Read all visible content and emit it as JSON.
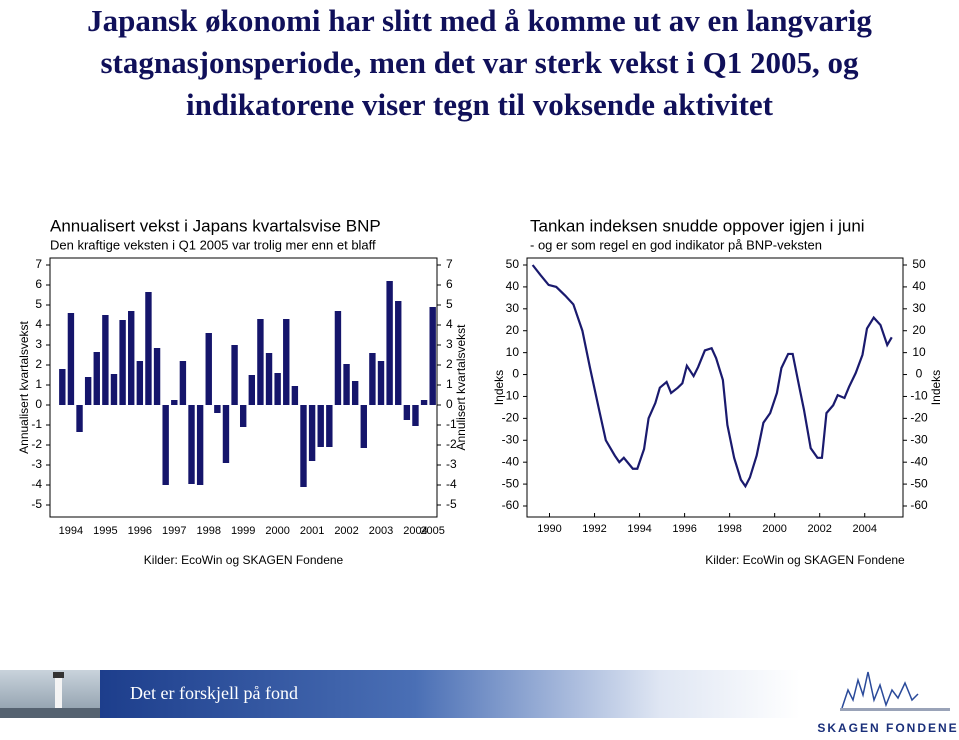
{
  "title": [
    "Japansk økonomi har slitt med å komme ut av en langvarig",
    "stagnasjonsperiode, men det var sterk vekst i Q1 2005, og",
    "indikatorene viser tegn til voksende aktivitet"
  ],
  "chart_data": [
    {
      "type": "bar",
      "title": "Annualisert vekst i Japans kvartalsvise BNP",
      "subtitle": "Den kraftige veksten i Q1 2005 var trolig mer enn et blaff",
      "ylabel": "Annualisert kvartalsvekst",
      "y2label": "Annulisert kvartalsvekst",
      "source": "Kilder: EcoWin og SKAGEN Fondene",
      "categories": [
        null,
        "1994",
        null,
        null,
        null,
        "1995",
        null,
        null,
        null,
        "1996",
        null,
        null,
        null,
        "1997",
        null,
        null,
        null,
        "1998",
        null,
        null,
        null,
        "1999",
        null,
        null,
        null,
        "2000",
        null,
        null,
        null,
        "2001",
        null,
        null,
        null,
        "2002",
        null,
        null,
        null,
        "2003",
        null,
        null,
        null,
        "2004",
        null,
        "2005"
      ],
      "values": [
        1.8,
        4.6,
        -1.35,
        1.4,
        2.65,
        4.5,
        1.55,
        4.25,
        4.7,
        2.2,
        5.65,
        2.85,
        -4.0,
        0.25,
        2.2,
        -3.95,
        -4.0,
        3.6,
        -0.4,
        -2.9,
        3.0,
        -1.1,
        1.5,
        4.3,
        2.6,
        1.6,
        4.3,
        0.95,
        -4.1,
        -2.8,
        -2.1,
        -2.1,
        4.7,
        2.05,
        1.2,
        -2.15,
        2.6,
        2.2,
        6.2,
        5.2,
        -0.75,
        -1.05,
        0.25,
        4.9
      ],
      "color": "#15156b",
      "ylim": [
        -5,
        7
      ],
      "yticks": [
        -5,
        -4,
        -3,
        -2,
        -1,
        0,
        1,
        2,
        3,
        4,
        5,
        6,
        7
      ],
      "y2lim": [
        -5,
        7
      ],
      "y2ticks": [
        -5,
        -4,
        -3,
        -2,
        -1,
        0,
        1,
        2,
        3,
        4,
        5,
        6,
        7
      ]
    },
    {
      "type": "line",
      "title": "Tankan indeksen snudde oppover igjen i juni",
      "subtitle": "- og er som regel en god indikator på BNP-veksten",
      "ylabel": "Indeks",
      "y2label": "Indeks",
      "source": "Kilder: EcoWin og SKAGEN Fondene",
      "x": [
        1989.25,
        1989.6,
        1989.96,
        1990.3,
        1990.7,
        1991.06,
        1991.46,
        1991.8,
        1992.2,
        1992.5,
        1992.9,
        1993.1,
        1993.3,
        1993.7,
        1993.9,
        1994.2,
        1994.4,
        1994.7,
        1994.9,
        1995.2,
        1995.4,
        1995.7,
        1995.9,
        1996.1,
        1996.4,
        1996.6,
        1996.9,
        1997.2,
        1997.4,
        1997.7,
        1997.9,
        1998.2,
        1998.5,
        1998.7,
        1998.9,
        1999.2,
        1999.5,
        1999.8,
        2000.1,
        2000.3,
        2000.6,
        2000.8,
        2001.1,
        2001.3,
        2001.6,
        2001.9,
        2002.1,
        2002.3,
        2002.6,
        2002.8,
        2003.1,
        2003.3,
        2003.6,
        2003.9,
        2004.1,
        2004.4,
        2004.7,
        2005.0,
        2005.2
      ],
      "values": [
        50,
        45.4,
        40.9,
        40,
        36,
        32,
        20,
        3,
        -16,
        -30,
        -37,
        -40,
        -38,
        -43,
        -43,
        -34,
        -20,
        -13,
        -6,
        -3.4,
        -8.4,
        -6,
        -4,
        4,
        -0.7,
        3.4,
        11,
        12,
        7.5,
        -2.5,
        -23,
        -38,
        -48,
        -51,
        -47,
        -37,
        -22,
        -17.6,
        -8.4,
        3,
        9.4,
        9.4,
        -6,
        -16,
        -33.6,
        -38,
        -38,
        -17.6,
        -14,
        -9.4,
        -10.7,
        -5.7,
        0.7,
        9,
        21,
        26,
        22.6,
        13.5,
        17
      ],
      "color": "#1a1a6e",
      "xlim": [
        1989,
        2005.7
      ],
      "xticks": [
        1990,
        1992,
        1994,
        1996,
        1998,
        2000,
        2002,
        2004
      ],
      "ylim": [
        -60,
        50
      ],
      "yticks": [
        -60,
        -50,
        -40,
        -30,
        -20,
        -10,
        0,
        10,
        20,
        30,
        40,
        50
      ],
      "y2lim": [
        -60,
        50
      ],
      "y2ticks": [
        -60,
        -50,
        -40,
        -30,
        -20,
        -10,
        0,
        10,
        20,
        30,
        40,
        50
      ]
    }
  ],
  "footer": {
    "slogan": "Det er forskjell på fond",
    "logo": "SKAGEN FONDENE"
  }
}
